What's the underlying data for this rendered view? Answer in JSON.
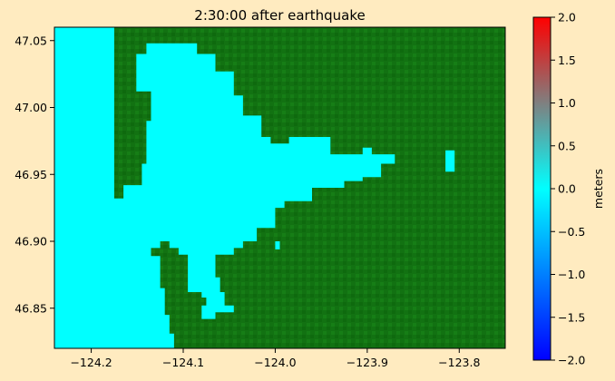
{
  "chart_data": {
    "type": "heatmap",
    "title": "2:30:00 after earthquake",
    "xlim": [
      -124.24,
      -123.75
    ],
    "ylim": [
      46.82,
      47.06
    ],
    "x_ticks": [
      -124.2,
      -124.1,
      -124.0,
      -123.9,
      -123.8
    ],
    "x_tick_labels": [
      "−124.2",
      "−124.1",
      "−124.0",
      "−123.9",
      "−123.8"
    ],
    "y_ticks": [
      46.85,
      46.9,
      46.95,
      47.0,
      47.05
    ],
    "y_tick_labels": [
      "46.85",
      "46.90",
      "46.95",
      "47.00",
      "47.05"
    ],
    "series": [
      {
        "name": "",
        "kind": "water_surface",
        "value": 0.0,
        "color": "#00ffff",
        "polygons": [
          [
            [
              -124.24,
              47.06
            ],
            [
              -124.175,
              47.06
            ],
            [
              -124.175,
              46.932
            ],
            [
              -124.165,
              46.932
            ],
            [
              -124.165,
              46.942
            ],
            [
              -124.145,
              46.942
            ],
            [
              -124.145,
              46.958
            ],
            [
              -124.14,
              46.958
            ],
            [
              -124.14,
              46.99
            ],
            [
              -124.135,
              46.99
            ],
            [
              -124.135,
              47.012
            ],
            [
              -124.151,
              47.012
            ],
            [
              -124.151,
              47.04
            ],
            [
              -124.14,
              47.04
            ],
            [
              -124.14,
              47.048
            ],
            [
              -124.085,
              47.048
            ],
            [
              -124.085,
              47.04
            ],
            [
              -124.065,
              47.04
            ],
            [
              -124.065,
              47.027
            ],
            [
              -124.045,
              47.027
            ],
            [
              -124.045,
              47.009
            ],
            [
              -124.035,
              47.009
            ],
            [
              -124.035,
              46.994
            ],
            [
              -124.015,
              46.994
            ],
            [
              -124.015,
              46.978
            ],
            [
              -124.005,
              46.978
            ],
            [
              -124.005,
              46.973
            ],
            [
              -123.985,
              46.973
            ],
            [
              -123.985,
              46.978
            ],
            [
              -123.94,
              46.978
            ],
            [
              -123.94,
              46.965
            ],
            [
              -123.905,
              46.965
            ],
            [
              -123.905,
              46.97
            ],
            [
              -123.895,
              46.97
            ],
            [
              -123.895,
              46.965
            ],
            [
              -123.87,
              46.965
            ],
            [
              -123.87,
              46.958
            ],
            [
              -123.885,
              46.958
            ],
            [
              -123.885,
              46.948
            ],
            [
              -123.905,
              46.948
            ],
            [
              -123.905,
              46.945
            ],
            [
              -123.925,
              46.945
            ],
            [
              -123.925,
              46.94
            ],
            [
              -123.96,
              46.94
            ],
            [
              -123.96,
              46.93
            ],
            [
              -123.99,
              46.93
            ],
            [
              -123.99,
              46.925
            ],
            [
              -124.0,
              46.925
            ],
            [
              -124.0,
              46.91
            ],
            [
              -124.02,
              46.91
            ],
            [
              -124.02,
              46.9
            ],
            [
              -124.035,
              46.9
            ],
            [
              -124.035,
              46.895
            ],
            [
              -124.045,
              46.895
            ],
            [
              -124.045,
              46.89
            ],
            [
              -124.065,
              46.89
            ],
            [
              -124.065,
              46.873
            ],
            [
              -124.06,
              46.873
            ],
            [
              -124.06,
              46.862
            ],
            [
              -124.055,
              46.862
            ],
            [
              -124.055,
              46.852
            ],
            [
              -124.045,
              46.852
            ],
            [
              -124.045,
              46.847
            ],
            [
              -124.065,
              46.847
            ],
            [
              -124.065,
              46.842
            ],
            [
              -124.08,
              46.842
            ],
            [
              -124.08,
              46.852
            ],
            [
              -124.075,
              46.852
            ],
            [
              -124.075,
              46.858
            ],
            [
              -124.08,
              46.858
            ],
            [
              -124.08,
              46.862
            ],
            [
              -124.095,
              46.862
            ],
            [
              -124.095,
              46.89
            ],
            [
              -124.105,
              46.89
            ],
            [
              -124.105,
              46.895
            ],
            [
              -124.115,
              46.895
            ],
            [
              -124.115,
              46.9
            ],
            [
              -124.125,
              46.9
            ],
            [
              -124.125,
              46.895
            ],
            [
              -124.135,
              46.895
            ],
            [
              -124.135,
              46.889
            ],
            [
              -124.125,
              46.889
            ],
            [
              -124.125,
              46.865
            ],
            [
              -124.12,
              46.865
            ],
            [
              -124.12,
              46.845
            ],
            [
              -124.115,
              46.845
            ],
            [
              -124.115,
              46.831
            ],
            [
              -124.11,
              46.831
            ],
            [
              -124.11,
              46.82
            ],
            [
              -124.24,
              46.82
            ]
          ],
          [
            [
              -123.815,
              46.968
            ],
            [
              -123.805,
              46.968
            ],
            [
              -123.805,
              46.952
            ],
            [
              -123.815,
              46.952
            ]
          ],
          [
            [
              -124.0,
              46.9
            ],
            [
              -123.995,
              46.9
            ],
            [
              -123.995,
              46.894
            ],
            [
              -124.0,
              46.894
            ]
          ]
        ]
      },
      {
        "name": "",
        "kind": "land",
        "color": "#127212",
        "fill": "rest_of_axes"
      }
    ]
  },
  "colorbar": {
    "label": "meters",
    "range": [
      -2.0,
      2.0
    ],
    "ticks": [
      2.0,
      1.5,
      1.0,
      0.5,
      0.0,
      -0.5,
      -1.0,
      -1.5,
      -2.0
    ],
    "tick_labels": [
      "2.0",
      "1.5",
      "1.0",
      "0.5",
      "0.0",
      "−0.5",
      "−1.0",
      "−1.5",
      "−2.0"
    ],
    "colors": [
      "#0000ff",
      "#00ffff",
      "#ff0000"
    ]
  }
}
